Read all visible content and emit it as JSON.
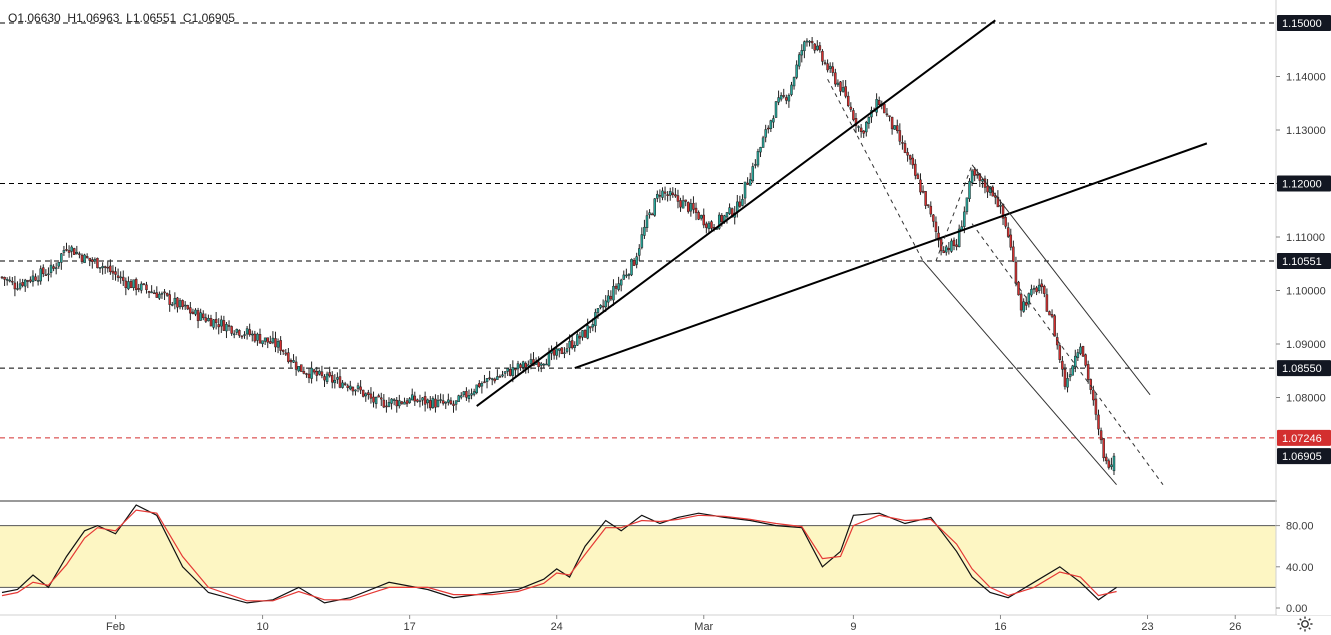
{
  "chart_data": [
    {
      "type": "candlestick",
      "symbol_legend": {
        "open_label": "O",
        "open": "1.06630",
        "high_label": "H",
        "high": "1.06963",
        "low_label": "L",
        "low": "1.06551",
        "close_label": "C",
        "close": "1.06905"
      },
      "x_ticks": [
        "Feb",
        "10",
        "17",
        "24",
        "Mar",
        "9",
        "16",
        "23",
        "26"
      ],
      "y_ticks": [
        "1.14000",
        "1.13000",
        "1.12000",
        "1.11000",
        "1.10000",
        "1.09000",
        "1.08000"
      ],
      "ylim": [
        1.0625,
        1.1525
      ],
      "price_tags": [
        {
          "label": "1.15000",
          "value": 1.15,
          "style": "dark"
        },
        {
          "label": "1.12000",
          "value": 1.12,
          "style": "dark"
        },
        {
          "label": "1.10551",
          "value": 1.10551,
          "style": "dark"
        },
        {
          "label": "1.08550",
          "value": 1.0855,
          "style": "dark"
        },
        {
          "label": "1.07246",
          "value": 1.07246,
          "style": "red"
        },
        {
          "label": "1.06905",
          "value": 1.06905,
          "style": "dark"
        }
      ],
      "horizontal_levels": [
        {
          "value": 1.15,
          "color": "#000000",
          "dash": true
        },
        {
          "value": 1.12,
          "color": "#000000",
          "dash": true
        },
        {
          "value": 1.10551,
          "color": "#000000",
          "dash": true
        },
        {
          "value": 1.0855,
          "color": "#000000",
          "dash": true
        },
        {
          "value": 1.07246,
          "color": "#d32f2f",
          "dash": true
        }
      ],
      "colors": {
        "up": "#26a69a",
        "down": "#d32f2f",
        "wick": "#222222"
      },
      "close_path_anchors": [
        [
          0,
          1.1025
        ],
        [
          5,
          1.101
        ],
        [
          12,
          1.1025
        ],
        [
          20,
          1.104
        ],
        [
          25,
          1.1085
        ],
        [
          32,
          1.106
        ],
        [
          38,
          1.105
        ],
        [
          48,
          1.1015
        ],
        [
          60,
          1.0995
        ],
        [
          75,
          1.0955
        ],
        [
          95,
          1.092
        ],
        [
          108,
          1.0895
        ],
        [
          115,
          1.0855
        ],
        [
          125,
          1.0835
        ],
        [
          135,
          1.0825
        ],
        [
          145,
          1.079
        ],
        [
          160,
          1.0795
        ],
        [
          175,
          1.0785
        ],
        [
          185,
          1.0825
        ],
        [
          200,
          1.0855
        ],
        [
          215,
          1.088
        ],
        [
          226,
          1.092
        ],
        [
          235,
          1.0985
        ],
        [
          245,
          1.1055
        ],
        [
          250,
          1.113
        ],
        [
          255,
          1.1185
        ],
        [
          265,
          1.116
        ],
        [
          275,
          1.112
        ],
        [
          285,
          1.1155
        ],
        [
          293,
          1.1255
        ],
        [
          300,
          1.1345
        ],
        [
          305,
          1.137
        ],
        [
          310,
          1.145
        ],
        [
          313,
          1.1475
        ],
        [
          318,
          1.143
        ],
        [
          325,
          1.138
        ],
        [
          333,
          1.1295
        ],
        [
          340,
          1.1355
        ],
        [
          350,
          1.126
        ],
        [
          357,
          1.118
        ],
        [
          364,
          1.108
        ],
        [
          370,
          1.1085
        ],
        [
          376,
          1.1215
        ],
        [
          385,
          1.118
        ],
        [
          390,
          1.1105
        ],
        [
          395,
          1.097
        ],
        [
          402,
          1.101
        ],
        [
          407,
          1.0945
        ],
        [
          412,
          1.0825
        ],
        [
          418,
          1.0905
        ],
        [
          422,
          1.0815
        ],
        [
          425,
          1.0735
        ],
        [
          428,
          1.0675
        ],
        [
          431,
          1.069
        ]
      ],
      "candle_count": 432,
      "trendlines": [
        {
          "from": [
            184,
            1.0784
          ],
          "to": [
            385,
            1.1505
          ],
          "width": 2
        },
        {
          "from": [
            222,
            1.0855
          ],
          "to": [
            467,
            1.1275
          ],
          "width": 2
        }
      ],
      "channel_lines": [
        {
          "from": [
            357,
            1.1055
          ],
          "to": [
            432,
            1.0637
          ],
          "width": 1
        },
        {
          "from": [
            376,
            1.1235
          ],
          "to": [
            445,
            1.0805
          ],
          "width": 1
        }
      ],
      "dashed_guides": [
        {
          "from": [
            320,
            1.1395
          ],
          "to": [
            357,
            1.1055
          ]
        },
        {
          "from": [
            362,
            1.1055
          ],
          "to": [
            376,
            1.1235
          ]
        },
        {
          "from": [
            376,
            1.1125
          ],
          "to": [
            450,
            1.0637
          ]
        }
      ]
    },
    {
      "type": "line",
      "indicator": "stochastic",
      "y_ticks": [
        "80.00",
        "40.00",
        "0.00"
      ],
      "ylim": [
        -2,
        102
      ],
      "band": [
        20,
        80
      ],
      "series": [
        {
          "color": "#111111",
          "values": [
            [
              0,
              15
            ],
            [
              6,
              18
            ],
            [
              12,
              32
            ],
            [
              18,
              20
            ],
            [
              25,
              50
            ],
            [
              32,
              75
            ],
            [
              37,
              80
            ],
            [
              44,
              72
            ],
            [
              52,
              100
            ],
            [
              60,
              90
            ],
            [
              70,
              40
            ],
            [
              80,
              15
            ],
            [
              95,
              5
            ],
            [
              105,
              8
            ],
            [
              115,
              20
            ],
            [
              125,
              5
            ],
            [
              135,
              10
            ],
            [
              150,
              25
            ],
            [
              165,
              18
            ],
            [
              175,
              10
            ],
            [
              190,
              15
            ],
            [
              200,
              18
            ],
            [
              210,
              28
            ],
            [
              215,
              38
            ],
            [
              220,
              30
            ],
            [
              226,
              60
            ],
            [
              234,
              85
            ],
            [
              240,
              75
            ],
            [
              248,
              90
            ],
            [
              255,
              82
            ],
            [
              262,
              88
            ],
            [
              270,
              92
            ],
            [
              280,
              88
            ],
            [
              290,
              85
            ],
            [
              300,
              80
            ],
            [
              310,
              78
            ],
            [
              318,
              40
            ],
            [
              325,
              55
            ],
            [
              330,
              90
            ],
            [
              340,
              92
            ],
            [
              350,
              82
            ],
            [
              360,
              88
            ],
            [
              370,
              55
            ],
            [
              376,
              30
            ],
            [
              383,
              15
            ],
            [
              390,
              10
            ],
            [
              400,
              25
            ],
            [
              410,
              40
            ],
            [
              418,
              25
            ],
            [
              425,
              8
            ],
            [
              432,
              20
            ]
          ]
        },
        {
          "color": "#e53935",
          "values": [
            [
              0,
              12
            ],
            [
              6,
              15
            ],
            [
              12,
              25
            ],
            [
              18,
              22
            ],
            [
              25,
              42
            ],
            [
              32,
              68
            ],
            [
              37,
              78
            ],
            [
              44,
              75
            ],
            [
              52,
              95
            ],
            [
              60,
              92
            ],
            [
              70,
              50
            ],
            [
              80,
              20
            ],
            [
              95,
              7
            ],
            [
              105,
              7
            ],
            [
              115,
              16
            ],
            [
              125,
              8
            ],
            [
              135,
              8
            ],
            [
              150,
              20
            ],
            [
              165,
              20
            ],
            [
              175,
              13
            ],
            [
              190,
              13
            ],
            [
              200,
              16
            ],
            [
              210,
              24
            ],
            [
              215,
              34
            ],
            [
              220,
              32
            ],
            [
              226,
              52
            ],
            [
              234,
              78
            ],
            [
              240,
              78
            ],
            [
              248,
              85
            ],
            [
              255,
              84
            ],
            [
              262,
              86
            ],
            [
              270,
              90
            ],
            [
              280,
              89
            ],
            [
              290,
              86
            ],
            [
              300,
              82
            ],
            [
              310,
              79
            ],
            [
              318,
              48
            ],
            [
              325,
              50
            ],
            [
              330,
              80
            ],
            [
              340,
              90
            ],
            [
              350,
              85
            ],
            [
              360,
              86
            ],
            [
              370,
              62
            ],
            [
              376,
              38
            ],
            [
              383,
              20
            ],
            [
              390,
              12
            ],
            [
              400,
              20
            ],
            [
              410,
              35
            ],
            [
              418,
              30
            ],
            [
              425,
              12
            ],
            [
              432,
              16
            ]
          ]
        }
      ]
    }
  ]
}
